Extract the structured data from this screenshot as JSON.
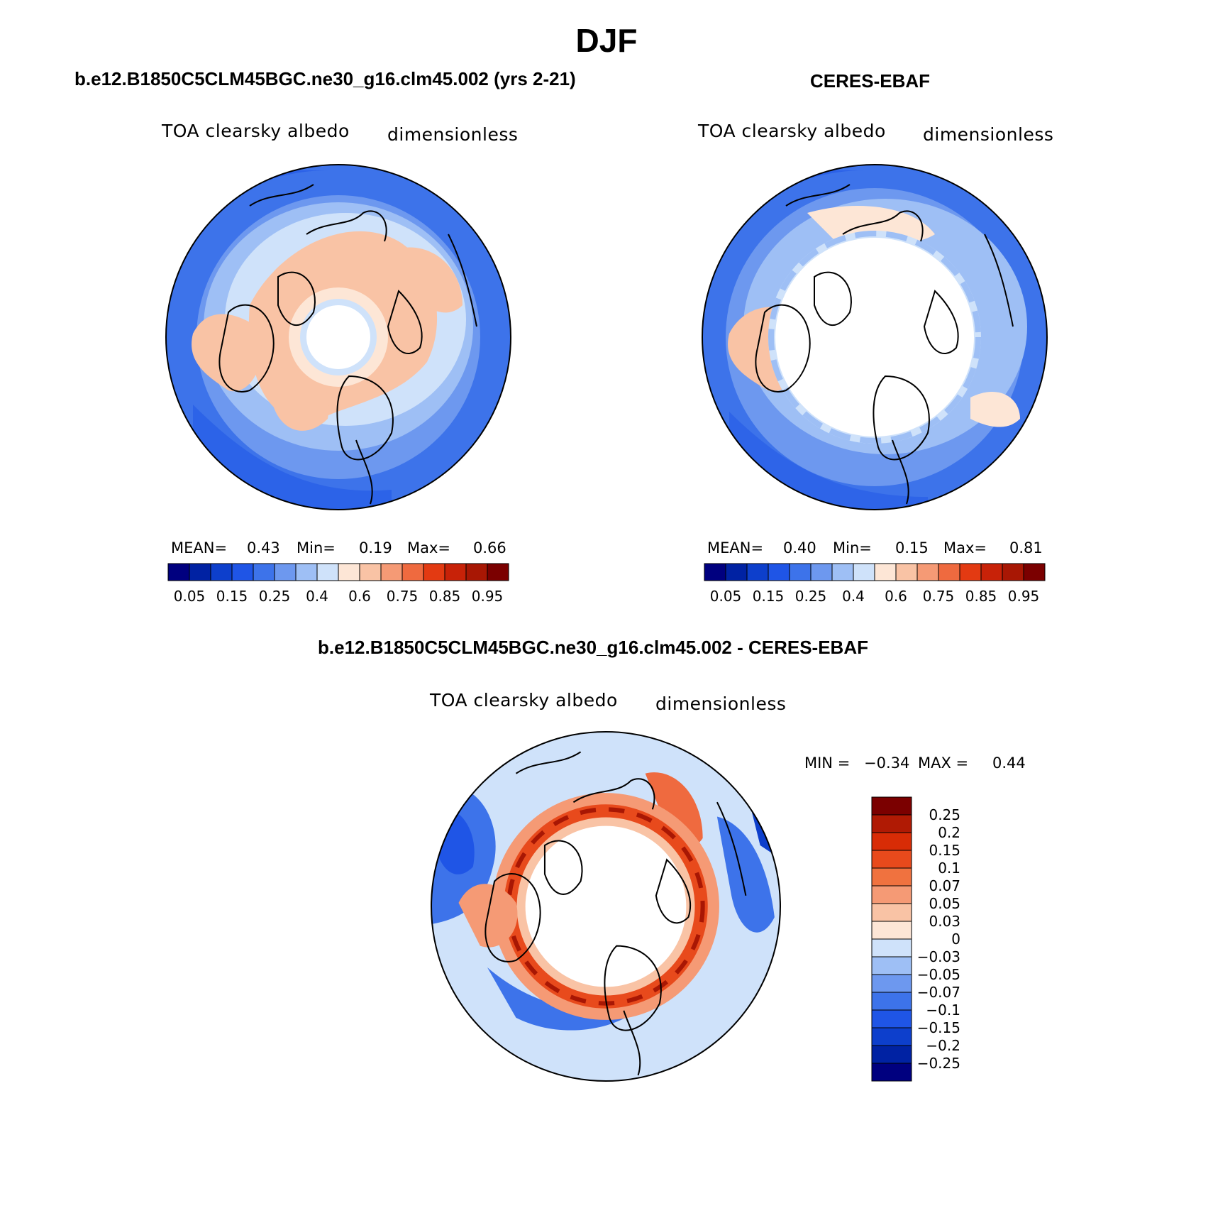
{
  "figure": {
    "title": "DJF"
  },
  "panels": [
    {
      "id": "model",
      "title": "b.e12.B1850C5CLM45BGC.ne30_g16.clm45.002 (yrs 2-21)",
      "variable": "TOA clearsky albedo",
      "units": "dimensionless",
      "stats": {
        "mean_label": "MEAN=",
        "mean": "0.43",
        "min_label": "Min=",
        "min": "0.19",
        "max_label": "Max=",
        "max": "0.66"
      },
      "colorbar": {
        "tick_labels": [
          "0.05",
          "0.15",
          "0.25",
          "0.4",
          "0.6",
          "0.75",
          "0.85",
          "0.95"
        ],
        "colors": [
          "#00007f",
          "#0022a3",
          "#0d3fcc",
          "#1f55e6",
          "#3d73ea",
          "#6d98ef",
          "#9ebff5",
          "#cfe2fa",
          "#fde6d6",
          "#f9c3a5",
          "#f59a75",
          "#ef6a3f",
          "#e33a12",
          "#c82208",
          "#a81704",
          "#7b0000"
        ]
      }
    },
    {
      "id": "obs",
      "title": "CERES-EBAF",
      "variable": "TOA clearsky albedo",
      "units": "dimensionless",
      "stats": {
        "mean_label": "MEAN=",
        "mean": "0.40",
        "min_label": "Min=",
        "min": "0.15",
        "max_label": "Max=",
        "max": "0.81"
      },
      "colorbar": {
        "tick_labels": [
          "0.05",
          "0.15",
          "0.25",
          "0.4",
          "0.6",
          "0.75",
          "0.85",
          "0.95"
        ],
        "colors": [
          "#00007f",
          "#0022a3",
          "#0d3fcc",
          "#1f55e6",
          "#3d73ea",
          "#6d98ef",
          "#9ebff5",
          "#cfe2fa",
          "#fde6d6",
          "#f9c3a5",
          "#f59a75",
          "#ef6a3f",
          "#e33a12",
          "#c82208",
          "#a81704",
          "#7b0000"
        ]
      }
    },
    {
      "id": "diff",
      "title": "b.e12.B1850C5CLM45BGC.ne30_g16.clm45.002 - CERES-EBAF",
      "variable": "TOA clearsky albedo",
      "units": "dimensionless",
      "stats": {
        "min_label": "MIN =",
        "min": "−0.34",
        "max_label": "MAX =",
        "max": "0.44"
      },
      "colorbar": {
        "tick_labels": [
          "0.25",
          "0.2",
          "0.15",
          "0.1",
          "0.07",
          "0.05",
          "0.03",
          "0",
          "−0.03",
          "−0.05",
          "−0.07",
          "−0.1",
          "−0.15",
          "−0.2",
          "−0.25"
        ],
        "colors": [
          "#7b0000",
          "#b01a04",
          "#d82c06",
          "#e84a1c",
          "#f0723f",
          "#f59a75",
          "#f9c3a5",
          "#fde6d6",
          "#cfe2fa",
          "#9ebff5",
          "#6d98ef",
          "#3d73ea",
          "#1f55e6",
          "#0d3fcc",
          "#0022a3",
          "#00007f"
        ]
      }
    }
  ]
}
